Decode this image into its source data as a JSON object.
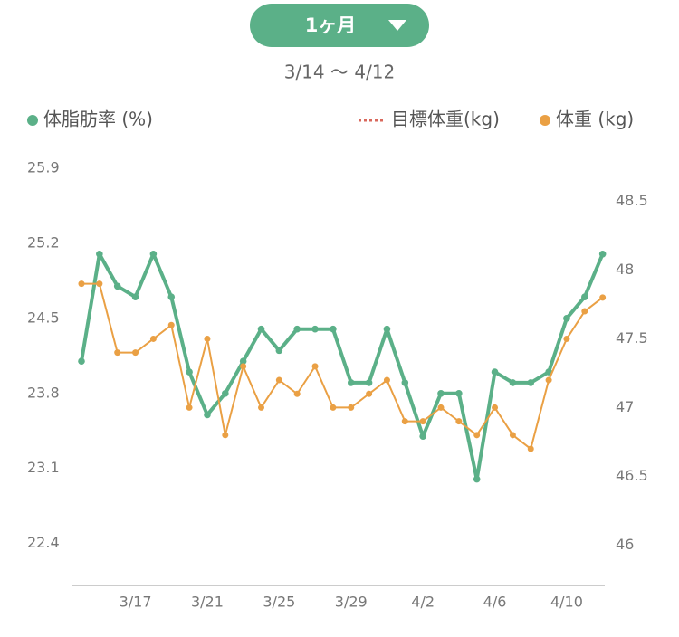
{
  "period_button": "1ヶ月",
  "date_range": "3/14 〜 4/12",
  "chart_data": {
    "type": "line",
    "categories": [
      null,
      null,
      null,
      "3/17",
      null,
      null,
      null,
      "3/21",
      null,
      null,
      null,
      "3/25",
      null,
      null,
      null,
      "3/29",
      null,
      null,
      null,
      "4/2",
      null,
      null,
      null,
      "4/6",
      null,
      null,
      null,
      "4/10",
      null,
      null
    ],
    "series": [
      {
        "name": "体脂肪率 (%)",
        "color": "#5bb088",
        "values": [
          24.1,
          25.1,
          24.8,
          24.7,
          25.1,
          24.7,
          24.0,
          23.6,
          23.8,
          24.1,
          24.4,
          24.2,
          24.4,
          24.4,
          24.4,
          23.9,
          23.9,
          24.4,
          23.9,
          23.4,
          23.8,
          23.8,
          23.0,
          24.0,
          23.9,
          23.9,
          24.0,
          24.5,
          24.7,
          25.1
        ]
      },
      {
        "name": "目標体重(kg)",
        "color": "#d9685c",
        "axis": "y2",
        "values": [
          null,
          null,
          null,
          null,
          null,
          null,
          null,
          null,
          null,
          null,
          null,
          null,
          null,
          null,
          null,
          null,
          null,
          null,
          null,
          null,
          null,
          null,
          null,
          null,
          null,
          null,
          null,
          null,
          null,
          null
        ]
      },
      {
        "name": "体重 (kg)",
        "color": "#eaa044",
        "axis": "y2",
        "values": [
          47.9,
          47.9,
          47.4,
          47.4,
          47.5,
          47.6,
          47.0,
          47.5,
          46.8,
          47.3,
          47.0,
          47.2,
          47.1,
          47.3,
          47.0,
          47.0,
          47.1,
          47.2,
          46.9,
          46.9,
          47.0,
          46.9,
          46.8,
          47.0,
          46.8,
          46.7,
          47.2,
          47.5,
          47.7,
          47.8
        ]
      }
    ],
    "ylim": [
      22.0,
      25.9
    ],
    "yticks": [
      25.9,
      25.2,
      24.5,
      23.8,
      23.1,
      22.4
    ],
    "y2lim": [
      45.7,
      48.74
    ],
    "y2ticks": [
      48.5,
      48,
      47.5,
      47,
      46.5,
      46
    ],
    "grid": false
  }
}
